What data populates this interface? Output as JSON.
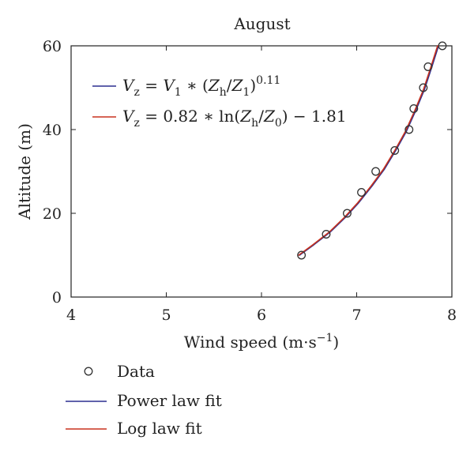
{
  "chart_data": {
    "type": "line",
    "title": "August",
    "xlabel": "Wind speed (m·s",
    "xlabel_sup": "−1",
    "xlabel_close": ")",
    "ylabel": "Altitude (m)",
    "xlim": [
      4,
      8
    ],
    "ylim": [
      0,
      60
    ],
    "xticks": [
      4,
      5,
      6,
      7,
      8
    ],
    "yticks": [
      0,
      20,
      40,
      60
    ],
    "grid": false,
    "legend_placement": "below",
    "series": [
      {
        "name": "Data",
        "kind": "scatter",
        "marker": "open-circle",
        "color": "#333333",
        "x": [
          6.42,
          6.68,
          6.9,
          7.05,
          7.2,
          7.4,
          7.55,
          7.6,
          7.7,
          7.75,
          7.9
        ],
        "y": [
          10,
          15,
          20,
          25,
          30,
          35,
          40,
          45,
          50,
          55,
          60
        ]
      },
      {
        "name": "Power law fit",
        "kind": "line",
        "color": "#2b2f8f",
        "x": [
          6.4,
          6.55,
          6.72,
          6.88,
          7.02,
          7.16,
          7.29,
          7.41,
          7.52,
          7.62,
          7.71,
          7.79,
          7.86
        ],
        "y": [
          10,
          12.5,
          15.5,
          19,
          22.5,
          26.5,
          30.5,
          35,
          39.5,
          44.5,
          49.5,
          55,
          60
        ]
      },
      {
        "name": "Log law fit",
        "kind": "line",
        "color": "#c8321e",
        "x": [
          6.39,
          6.54,
          6.71,
          6.87,
          7.01,
          7.15,
          7.28,
          7.4,
          7.51,
          7.61,
          7.7,
          7.78,
          7.85
        ],
        "y": [
          10,
          12.5,
          15.5,
          19,
          22.5,
          26.5,
          30.5,
          35,
          39.5,
          44.5,
          49.5,
          55,
          60
        ]
      }
    ],
    "equations": [
      {
        "color": "#2b2f8f",
        "parts": [
          {
            "t": "V",
            "style": "italic"
          },
          {
            "t": "z",
            "sub": true
          },
          {
            "t": " = "
          },
          {
            "t": "V",
            "style": "italic"
          },
          {
            "t": "1",
            "sub": true
          },
          {
            "t": " ∗ ("
          },
          {
            "t": "Z",
            "style": "italic"
          },
          {
            "t": "h",
            "sub": true
          },
          {
            "t": "/"
          },
          {
            "t": "Z",
            "style": "italic"
          },
          {
            "t": "1",
            "sub": true
          },
          {
            "t": ")"
          },
          {
            "t": "0.11",
            "sup": true
          }
        ]
      },
      {
        "color": "#c8321e",
        "parts": [
          {
            "t": "V",
            "style": "italic"
          },
          {
            "t": "z",
            "sub": true
          },
          {
            "t": " = 0.82 ∗ ln("
          },
          {
            "t": "Z",
            "style": "italic"
          },
          {
            "t": "h",
            "sub": true
          },
          {
            "t": "/"
          },
          {
            "t": "Z",
            "style": "italic"
          },
          {
            "t": "0",
            "sub": true
          },
          {
            "t": ") − 1.81"
          }
        ]
      }
    ]
  }
}
